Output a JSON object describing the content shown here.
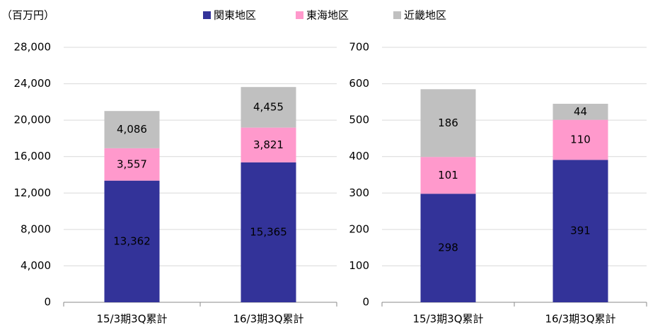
{
  "chart_data": [
    {
      "type": "bar",
      "stacked": true,
      "ylabel": "（百万円）",
      "categories": [
        "15/3期3Q累計",
        "16/3期3Q累計"
      ],
      "series": [
        {
          "name": "関東地区",
          "color": "#333399",
          "values": [
            13362,
            15365
          ],
          "value_labels": [
            "13,362",
            "15,365"
          ]
        },
        {
          "name": "東海地区",
          "color": "#ff99cc",
          "values": [
            3557,
            3821
          ],
          "value_labels": [
            "3,557",
            "3,821"
          ]
        },
        {
          "name": "近畿地区",
          "color": "#c0c0c0",
          "values": [
            4086,
            4455
          ],
          "value_labels": [
            "4,086",
            "4,455"
          ]
        }
      ],
      "ylim": [
        0,
        28000
      ],
      "yticks": [
        0,
        {
          "value": 4000,
          "label": "4,000"
        },
        {
          "value": 8000,
          "label": "8,000"
        },
        {
          "value": 12000,
          "label": "12,000"
        },
        {
          "value": 16000,
          "label": "16,000"
        },
        {
          "value": 20000,
          "label": "20,000"
        },
        {
          "value": 24000,
          "label": "24,000"
        },
        {
          "value": 28000,
          "label": "28,000"
        }
      ],
      "grid": true
    },
    {
      "type": "bar",
      "stacked": true,
      "categories": [
        "15/3期3Q累計",
        "16/3期3Q累計"
      ],
      "series": [
        {
          "color": "#333399",
          "values": [
            298,
            391
          ]
        },
        {
          "color": "#ff99cc",
          "values": [
            101,
            110
          ]
        },
        {
          "color": "#c0c0c0",
          "values": [
            186,
            44
          ]
        }
      ],
      "ylim": [
        0,
        700
      ],
      "yticks": [
        0,
        100,
        200,
        300,
        400,
        500,
        600,
        700
      ],
      "grid": true
    }
  ]
}
